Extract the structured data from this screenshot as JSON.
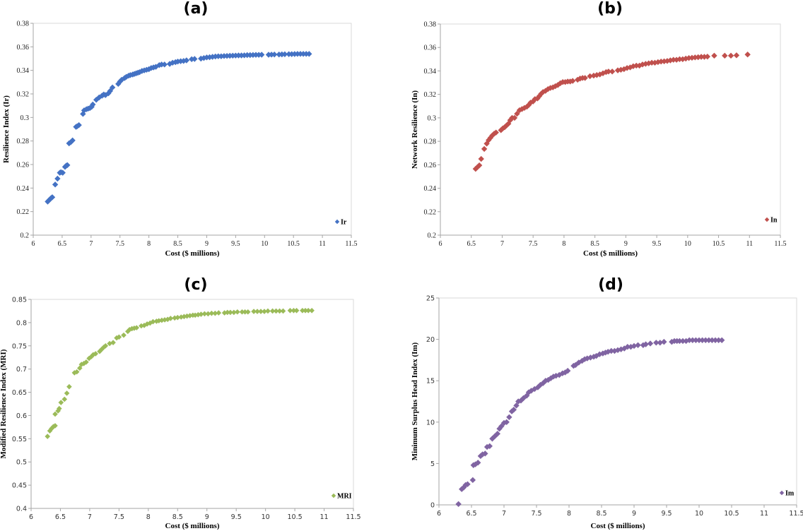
{
  "chart_data": [
    {
      "id": "a",
      "type": "scatter",
      "title": "(a)",
      "xlabel": "Cost ($ millions)",
      "ylabel": "Resilience Index (Ir)",
      "xlim": [
        6,
        11.5
      ],
      "ylim": [
        0.2,
        0.38
      ],
      "xticks": [
        "6",
        "6.5",
        "7",
        "7.5",
        "8",
        "8.5",
        "9",
        "9.5",
        "10",
        "10.5",
        "11",
        "11.5"
      ],
      "yticks": [
        "0.2",
        "0.22",
        "0.24",
        "0.26",
        "0.28",
        "0.3",
        "0.32",
        "0.34",
        "0.36",
        "0.38"
      ],
      "grid": false,
      "legend": "bottom-right",
      "series": [
        {
          "name": "Ir",
          "color": "#4472C4",
          "marker": "diamond",
          "x": [
            6.25,
            6.27,
            6.29,
            6.31,
            6.33,
            6.38,
            6.42,
            6.46,
            6.48,
            6.51,
            6.55,
            6.57,
            6.59,
            6.62,
            6.65,
            6.68,
            6.74,
            6.76,
            6.79,
            6.86,
            6.88,
            6.92,
            6.95,
            6.98,
            7.01,
            7.03,
            7.09,
            7.14,
            7.19,
            7.22,
            7.25,
            7.3,
            7.33,
            7.37,
            7.47,
            7.5,
            7.53,
            7.58,
            7.61,
            7.65,
            7.68,
            7.72,
            7.75,
            7.78,
            7.81,
            7.84,
            7.88,
            7.92,
            7.96,
            8.0,
            8.04,
            8.08,
            8.12,
            8.18,
            8.22,
            8.27,
            8.36,
            8.41,
            8.46,
            8.5,
            8.55,
            8.6,
            8.65,
            8.74,
            8.79,
            8.9,
            8.95,
            9.0,
            9.05,
            9.1,
            9.15,
            9.2,
            9.25,
            9.3,
            9.35,
            9.4,
            9.45,
            9.5,
            9.55,
            9.6,
            9.65,
            9.7,
            9.75,
            9.8,
            9.85,
            9.9,
            9.95,
            10.07,
            10.12,
            10.17,
            10.25,
            10.3,
            10.35,
            10.42,
            10.47,
            10.52,
            10.57,
            10.62,
            10.67,
            10.72,
            10.77
          ],
          "y": [
            0.2285,
            0.2295,
            0.2305,
            0.2315,
            0.2322,
            0.243,
            0.248,
            0.253,
            0.2535,
            0.253,
            0.258,
            0.259,
            0.2595,
            0.278,
            0.279,
            0.2805,
            0.292,
            0.2925,
            0.2935,
            0.303,
            0.306,
            0.307,
            0.3075,
            0.308,
            0.309,
            0.311,
            0.315,
            0.317,
            0.3185,
            0.3195,
            0.319,
            0.3205,
            0.3225,
            0.3255,
            0.3285,
            0.3305,
            0.332,
            0.3335,
            0.3345,
            0.3355,
            0.336,
            0.3365,
            0.337,
            0.3375,
            0.338,
            0.3385,
            0.3395,
            0.34,
            0.3405,
            0.341,
            0.342,
            0.3425,
            0.343,
            0.3445,
            0.345,
            0.345,
            0.3455,
            0.3465,
            0.347,
            0.3475,
            0.3478,
            0.348,
            0.3485,
            0.3495,
            0.3497,
            0.35,
            0.3505,
            0.351,
            0.3512,
            0.3515,
            0.3518,
            0.352,
            0.352,
            0.3522,
            0.3523,
            0.3524,
            0.3525,
            0.3526,
            0.3527,
            0.3527,
            0.3528,
            0.353,
            0.353,
            0.3531,
            0.3532,
            0.3532,
            0.3533,
            0.3533,
            0.3534,
            0.3535,
            0.3535,
            0.3536,
            0.3537,
            0.3538,
            0.3538,
            0.3539,
            0.354,
            0.354,
            0.354,
            0.354,
            0.354
          ]
        }
      ]
    },
    {
      "id": "b",
      "type": "scatter",
      "title": "(b)",
      "xlabel": "Cost ($ millions)",
      "ylabel": "Network Resilience (In)",
      "xlim": [
        6,
        11.5
      ],
      "ylim": [
        0.2,
        0.38
      ],
      "xticks": [
        "6",
        "6.5",
        "7",
        "7.5",
        "8",
        "8.5",
        "9",
        "9.5",
        "10",
        "10.5",
        "11",
        "11.5"
      ],
      "yticks": [
        "0.2",
        "0.22",
        "0.24",
        "0.26",
        "0.28",
        "0.3",
        "0.32",
        "0.34",
        "0.36",
        "0.38"
      ],
      "grid": false,
      "legend": "bottom-right",
      "series": [
        {
          "name": "In",
          "color": "#C0504D",
          "marker": "diamond",
          "x": [
            6.57,
            6.6,
            6.63,
            6.66,
            6.71,
            6.75,
            6.78,
            6.81,
            6.84,
            6.87,
            6.9,
            6.98,
            7.01,
            7.04,
            7.07,
            7.1,
            7.13,
            7.16,
            7.2,
            7.24,
            7.28,
            7.32,
            7.36,
            7.4,
            7.43,
            7.46,
            7.5,
            7.53,
            7.57,
            7.6,
            7.63,
            7.66,
            7.7,
            7.74,
            7.78,
            7.82,
            7.86,
            7.9,
            7.94,
            7.98,
            8.02,
            8.06,
            8.1,
            8.14,
            8.22,
            8.26,
            8.3,
            8.34,
            8.42,
            8.48,
            8.53,
            8.58,
            8.63,
            8.68,
            8.72,
            8.78,
            8.87,
            8.92,
            8.97,
            9.02,
            9.07,
            9.12,
            9.17,
            9.22,
            9.27,
            9.32,
            9.37,
            9.42,
            9.47,
            9.52,
            9.57,
            9.62,
            9.67,
            9.72,
            9.77,
            9.82,
            9.87,
            9.92,
            9.97,
            10.02,
            10.07,
            10.12,
            10.17,
            10.22,
            10.27,
            10.32,
            10.43,
            10.6,
            10.7,
            10.79,
            10.97
          ],
          "y": [
            0.2565,
            0.258,
            0.2595,
            0.265,
            0.2735,
            0.278,
            0.281,
            0.283,
            0.285,
            0.2865,
            0.2875,
            0.2895,
            0.291,
            0.292,
            0.2935,
            0.295,
            0.298,
            0.3,
            0.3,
            0.3035,
            0.3065,
            0.3075,
            0.3085,
            0.3095,
            0.311,
            0.313,
            0.314,
            0.316,
            0.3165,
            0.3185,
            0.3205,
            0.322,
            0.323,
            0.3245,
            0.3255,
            0.326,
            0.327,
            0.328,
            0.3295,
            0.3305,
            0.3305,
            0.331,
            0.331,
            0.3315,
            0.3325,
            0.3335,
            0.334,
            0.334,
            0.3355,
            0.336,
            0.3365,
            0.337,
            0.338,
            0.339,
            0.3395,
            0.3395,
            0.3405,
            0.341,
            0.3415,
            0.3425,
            0.343,
            0.344,
            0.3445,
            0.3445,
            0.3455,
            0.346,
            0.3465,
            0.347,
            0.347,
            0.3475,
            0.348,
            0.3482,
            0.3485,
            0.349,
            0.3495,
            0.3495,
            0.35,
            0.35,
            0.3505,
            0.351,
            0.3512,
            0.3515,
            0.3517,
            0.352,
            0.352,
            0.3522,
            0.353,
            0.353,
            0.353,
            0.3533,
            0.354
          ]
        }
      ]
    },
    {
      "id": "c",
      "type": "scatter",
      "title": "(c)",
      "xlabel": "Cost ($ millions)",
      "ylabel": "Modified Resilience Index (MRI)",
      "xlim": [
        6,
        11.5
      ],
      "ylim": [
        0.4,
        0.85
      ],
      "xticks": [
        "6",
        "6.5",
        "7",
        "7.5",
        "8",
        "8.5",
        "9",
        "9.5",
        "10",
        "10.5",
        "11",
        "11.5"
      ],
      "yticks": [
        "0.4",
        "0.45",
        "0.5",
        "0.55",
        "0.6",
        "0.65",
        "0.7",
        "0.75",
        "0.8",
        "0.85"
      ],
      "grid": false,
      "legend": "bottom-right",
      "series": [
        {
          "name": "MRI",
          "color": "#9BBB59",
          "marker": "diamond",
          "x": [
            6.28,
            6.32,
            6.35,
            6.38,
            6.41,
            6.41,
            6.46,
            6.48,
            6.51,
            6.57,
            6.61,
            6.65,
            6.74,
            6.78,
            6.83,
            6.86,
            6.9,
            6.94,
            6.99,
            7.03,
            7.06,
            7.1,
            7.17,
            7.2,
            7.24,
            7.27,
            7.34,
            7.4,
            7.46,
            7.5,
            7.58,
            7.65,
            7.68,
            7.72,
            7.76,
            7.8,
            7.88,
            7.93,
            7.98,
            8.03,
            8.08,
            8.14,
            8.18,
            8.23,
            8.28,
            8.33,
            8.38,
            8.45,
            8.5,
            8.56,
            8.61,
            8.66,
            8.71,
            8.76,
            8.8,
            8.85,
            8.9,
            8.96,
            9.02,
            9.08,
            9.14,
            9.2,
            9.3,
            9.35,
            9.4,
            9.46,
            9.52,
            9.6,
            9.65,
            9.7,
            9.8,
            9.86,
            9.92,
            9.98,
            10.04,
            10.12,
            10.18,
            10.24,
            10.3,
            10.42,
            10.48,
            10.53,
            10.63,
            10.68,
            10.73,
            10.79
          ],
          "y": [
            0.555,
            0.567,
            0.572,
            0.576,
            0.578,
            0.603,
            0.61,
            0.615,
            0.628,
            0.635,
            0.648,
            0.662,
            0.692,
            0.694,
            0.702,
            0.71,
            0.712,
            0.715,
            0.723,
            0.727,
            0.731,
            0.733,
            0.738,
            0.742,
            0.747,
            0.75,
            0.755,
            0.757,
            0.767,
            0.769,
            0.773,
            0.781,
            0.785,
            0.787,
            0.788,
            0.789,
            0.793,
            0.794,
            0.797,
            0.799,
            0.802,
            0.803,
            0.804,
            0.805,
            0.806,
            0.807,
            0.809,
            0.81,
            0.811,
            0.812,
            0.813,
            0.814,
            0.815,
            0.816,
            0.816,
            0.817,
            0.818,
            0.819,
            0.819,
            0.82,
            0.82,
            0.821,
            0.821,
            0.822,
            0.822,
            0.822,
            0.823,
            0.823,
            0.823,
            0.823,
            0.824,
            0.824,
            0.824,
            0.824,
            0.825,
            0.825,
            0.825,
            0.825,
            0.825,
            0.826,
            0.826,
            0.826,
            0.826,
            0.826,
            0.826,
            0.826
          ]
        }
      ]
    },
    {
      "id": "d",
      "type": "scatter",
      "title": "(d)",
      "xlabel": "Cost ($ millions)",
      "ylabel": "Minimum Surplus Head Index (Im)",
      "xlim": [
        6,
        11.5
      ],
      "ylim": [
        0,
        25
      ],
      "xticks": [
        "6",
        "6.5",
        "7",
        "7.5",
        "8",
        "8.5",
        "9",
        "9.5",
        "10",
        "10.5",
        "11",
        "11.5"
      ],
      "yticks": [
        "0",
        "5",
        "10",
        "15",
        "20",
        "25"
      ],
      "grid": false,
      "legend": "bottom-right",
      "series": [
        {
          "name": "Im",
          "color": "#8064A2",
          "marker": "diamond",
          "x": [
            6.3,
            6.35,
            6.38,
            6.41,
            6.44,
            6.52,
            6.53,
            6.56,
            6.6,
            6.64,
            6.67,
            6.71,
            6.74,
            6.78,
            6.82,
            6.86,
            6.9,
            6.93,
            6.96,
            7.0,
            7.04,
            7.08,
            7.12,
            7.15,
            7.19,
            7.22,
            7.26,
            7.3,
            7.35,
            7.38,
            7.42,
            7.47,
            7.52,
            7.56,
            7.6,
            7.64,
            7.68,
            7.72,
            7.76,
            7.8,
            7.85,
            7.9,
            7.94,
            7.98,
            8.07,
            8.1,
            8.15,
            8.2,
            8.24,
            8.28,
            8.33,
            8.38,
            8.42,
            8.47,
            8.52,
            8.56,
            8.6,
            8.65,
            8.7,
            8.75,
            8.8,
            8.85,
            8.9,
            8.95,
            9.0,
            9.06,
            9.14,
            9.18,
            9.25,
            9.34,
            9.4,
            9.46,
            9.58,
            9.62,
            9.66,
            9.7,
            9.75,
            9.8,
            9.85,
            9.9,
            9.95,
            10.0,
            10.05,
            10.1,
            10.15,
            10.2,
            10.25,
            10.3,
            10.35
          ],
          "y": [
            0.1,
            1.9,
            2.1,
            2.4,
            2.5,
            3.0,
            4.8,
            4.9,
            5.1,
            5.9,
            6.1,
            6.2,
            7.0,
            7.1,
            8.0,
            8.3,
            8.6,
            9.2,
            9.5,
            9.9,
            10.0,
            10.6,
            11.3,
            11.5,
            12.0,
            12.5,
            12.6,
            12.9,
            13.2,
            13.6,
            13.8,
            14.0,
            14.2,
            14.5,
            14.7,
            15.0,
            15.1,
            15.3,
            15.5,
            15.6,
            15.7,
            15.9,
            16.0,
            16.2,
            16.8,
            16.9,
            17.2,
            17.4,
            17.6,
            17.7,
            17.8,
            17.9,
            18.0,
            18.2,
            18.3,
            18.4,
            18.5,
            18.6,
            18.6,
            18.7,
            18.8,
            18.9,
            19.1,
            19.1,
            19.2,
            19.3,
            19.3,
            19.4,
            19.5,
            19.6,
            19.6,
            19.7,
            19.7,
            19.8,
            19.8,
            19.8,
            19.8,
            19.8,
            19.9,
            19.9,
            19.9,
            19.9,
            19.9,
            19.9,
            19.9,
            19.9,
            19.9,
            19.9,
            19.9
          ]
        }
      ]
    }
  ]
}
